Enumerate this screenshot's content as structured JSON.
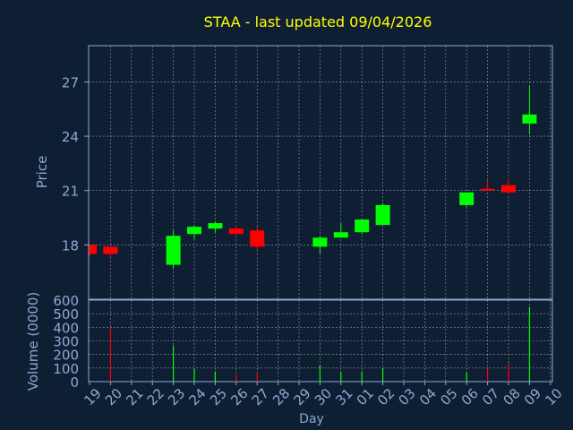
{
  "chart_data": [
    {
      "type": "candlestick",
      "title": "STAA - last updated 09/04/2026",
      "ylabel": "Price",
      "xlabel": "Day",
      "ylim": [
        15,
        29
      ],
      "yticks": [
        18,
        21,
        24,
        27
      ],
      "grid": true,
      "x": [
        "19",
        "20",
        "21",
        "22",
        "23",
        "24",
        "25",
        "26",
        "27",
        "28",
        "29",
        "30",
        "31",
        "01",
        "02",
        "03",
        "04",
        "05",
        "06",
        "07",
        "08",
        "09",
        "10"
      ],
      "candles": [
        {
          "day": "19",
          "open": 18.0,
          "high": 18.0,
          "low": 17.4,
          "close": 17.5
        },
        {
          "day": "20",
          "open": 17.9,
          "high": 17.9,
          "low": 17.3,
          "close": 17.5
        },
        {
          "day": "23",
          "open": 16.9,
          "high": 18.8,
          "low": 16.7,
          "close": 18.5
        },
        {
          "day": "24",
          "open": 18.6,
          "high": 19.1,
          "low": 18.3,
          "close": 19.0
        },
        {
          "day": "25",
          "open": 18.9,
          "high": 19.3,
          "low": 18.7,
          "close": 19.2
        },
        {
          "day": "26",
          "open": 18.9,
          "high": 19.1,
          "low": 18.6,
          "close": 18.6
        },
        {
          "day": "27",
          "open": 18.8,
          "high": 19.0,
          "low": 17.7,
          "close": 17.9
        },
        {
          "day": "30",
          "open": 17.9,
          "high": 18.5,
          "low": 17.5,
          "close": 18.4
        },
        {
          "day": "31",
          "open": 18.4,
          "high": 19.2,
          "low": 18.4,
          "close": 18.7
        },
        {
          "day": "01",
          "open": 18.7,
          "high": 19.4,
          "low": 18.6,
          "close": 19.4
        },
        {
          "day": "02",
          "open": 19.1,
          "high": 20.3,
          "low": 19.1,
          "close": 20.2
        },
        {
          "day": "06",
          "open": 20.2,
          "high": 20.9,
          "low": 20.1,
          "close": 20.9
        },
        {
          "day": "07",
          "open": 21.1,
          "high": 21.6,
          "low": 21.0,
          "close": 21.0
        },
        {
          "day": "08",
          "open": 21.3,
          "high": 21.7,
          "low": 20.8,
          "close": 20.9
        },
        {
          "day": "09",
          "open": 24.7,
          "high": 26.8,
          "low": 24.1,
          "close": 25.2
        }
      ],
      "colors": {
        "up": "#00ff00",
        "down": "#ff0000"
      }
    },
    {
      "type": "bar",
      "ylabel": "Volume (0000)",
      "ylim": [
        0,
        600
      ],
      "yticks": [
        0,
        100,
        200,
        300,
        400,
        500,
        600
      ],
      "volumes": [
        {
          "day": "20",
          "value": 395,
          "dir": "down"
        },
        {
          "day": "23",
          "value": 265,
          "dir": "up"
        },
        {
          "day": "24",
          "value": 95,
          "dir": "up"
        },
        {
          "day": "25",
          "value": 75,
          "dir": "up"
        },
        {
          "day": "26",
          "value": 50,
          "dir": "down"
        },
        {
          "day": "27",
          "value": 65,
          "dir": "down"
        },
        {
          "day": "30",
          "value": 120,
          "dir": "up"
        },
        {
          "day": "31",
          "value": 75,
          "dir": "up"
        },
        {
          "day": "01",
          "value": 75,
          "dir": "up"
        },
        {
          "day": "02",
          "value": 100,
          "dir": "up"
        },
        {
          "day": "06",
          "value": 70,
          "dir": "up"
        },
        {
          "day": "07",
          "value": 95,
          "dir": "down"
        },
        {
          "day": "08",
          "value": 135,
          "dir": "down"
        },
        {
          "day": "09",
          "value": 550,
          "dir": "up"
        }
      ]
    }
  ],
  "colors": {
    "background": "#0f1f33",
    "title": "#ffff00",
    "axis_text": "#8aaad2",
    "grid": "#ffffff",
    "frame": "#8aaad2"
  }
}
